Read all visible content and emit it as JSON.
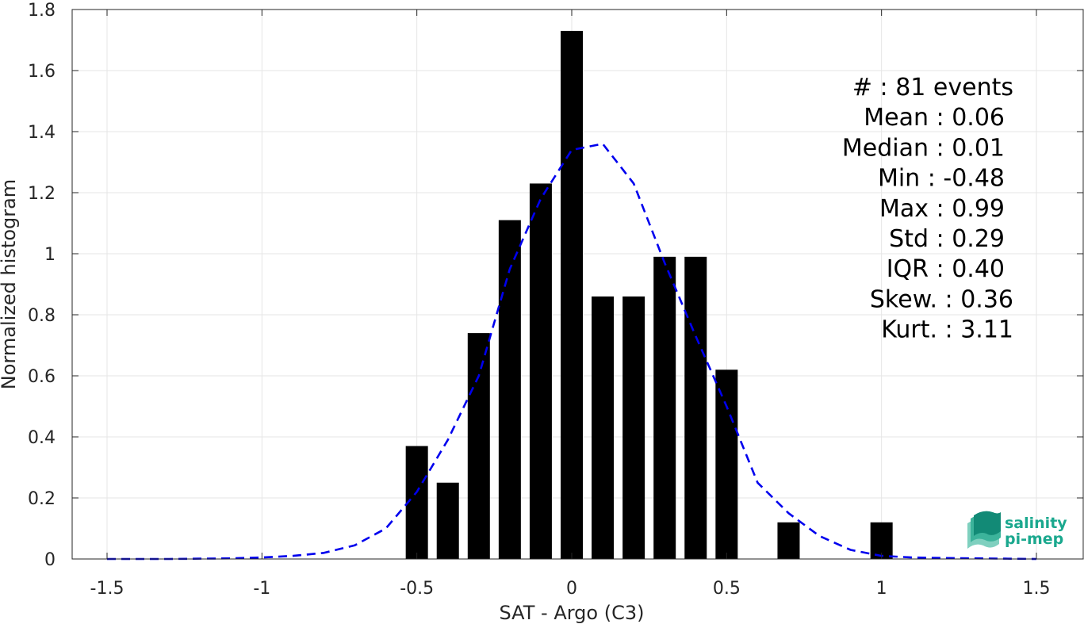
{
  "chart_data": {
    "type": "bar",
    "xlabel": "SAT - Argo (C3)",
    "ylabel": "Normalized histogram",
    "xlim": [
      -1.5,
      1.5
    ],
    "ylim": [
      0,
      1.8
    ],
    "x_ticks": [
      -1.5,
      -1,
      -0.5,
      0,
      0.5,
      1,
      1.5
    ],
    "x_tick_labels": [
      "-1.5",
      "-1",
      "-0.5",
      "0",
      "0.5",
      "1",
      "1.5"
    ],
    "y_ticks": [
      0,
      0.2,
      0.4,
      0.6,
      0.8,
      1,
      1.2,
      1.4,
      1.6,
      1.8
    ],
    "y_tick_labels": [
      "0",
      "0.2",
      "0.4",
      "0.6",
      "0.8",
      "1",
      "1.2",
      "1.4",
      "1.6",
      "1.8"
    ],
    "grid": true,
    "bar_color": "#000000",
    "bars": [
      {
        "x": -0.5,
        "value": 0.37
      },
      {
        "x": -0.4,
        "value": 0.25
      },
      {
        "x": -0.3,
        "value": 0.74
      },
      {
        "x": -0.2,
        "value": 1.11
      },
      {
        "x": -0.1,
        "value": 1.23
      },
      {
        "x": 0.0,
        "value": 1.73
      },
      {
        "x": 0.1,
        "value": 0.86
      },
      {
        "x": 0.2,
        "value": 0.86
      },
      {
        "x": 0.3,
        "value": 0.99
      },
      {
        "x": 0.4,
        "value": 0.99
      },
      {
        "x": 0.5,
        "value": 0.62
      },
      {
        "x": 0.7,
        "value": 0.12
      },
      {
        "x": 1.0,
        "value": 0.12
      }
    ],
    "fit_curve": {
      "style": "dashed",
      "color": "#0000ee",
      "points": [
        [
          -1.5,
          0.0
        ],
        [
          -1.4,
          0.0
        ],
        [
          -1.3,
          0.0
        ],
        [
          -1.2,
          0.001
        ],
        [
          -1.1,
          0.002
        ],
        [
          -1.0,
          0.005
        ],
        [
          -0.9,
          0.01
        ],
        [
          -0.8,
          0.02
        ],
        [
          -0.7,
          0.045
        ],
        [
          -0.6,
          0.1
        ],
        [
          -0.5,
          0.22
        ],
        [
          -0.4,
          0.39
        ],
        [
          -0.3,
          0.6
        ],
        [
          -0.2,
          0.95
        ],
        [
          -0.1,
          1.18
        ],
        [
          0.0,
          1.34
        ],
        [
          0.1,
          1.36
        ],
        [
          0.2,
          1.23
        ],
        [
          0.3,
          0.97
        ],
        [
          0.4,
          0.73
        ],
        [
          0.5,
          0.5
        ],
        [
          0.6,
          0.25
        ],
        [
          0.7,
          0.15
        ],
        [
          0.8,
          0.075
        ],
        [
          0.9,
          0.03
        ],
        [
          1.0,
          0.01
        ],
        [
          1.1,
          0.005
        ],
        [
          1.2,
          0.003
        ],
        [
          1.3,
          0.002
        ],
        [
          1.4,
          0.001
        ],
        [
          1.5,
          0.0
        ]
      ]
    }
  },
  "stats": [
    {
      "label": "#  ",
      "value": "81 events"
    },
    {
      "label": "Mean",
      "value": "0.06"
    },
    {
      "label": "Median",
      "value": "0.01"
    },
    {
      "label": "Min",
      "value": "-0.48"
    },
    {
      "label": "Max",
      "value": "0.99"
    },
    {
      "label": "Std",
      "value": "0.29"
    },
    {
      "label": "IQR",
      "value": "0.40"
    },
    {
      "label": "Skew.",
      "value": "0.36"
    },
    {
      "label": "Kurt.",
      "value": "3.11"
    }
  ],
  "logo": {
    "line1": "salinity",
    "line2": "pi-mep",
    "color_main": "#1aa88e",
    "color_dark": "#0e7f6e"
  }
}
